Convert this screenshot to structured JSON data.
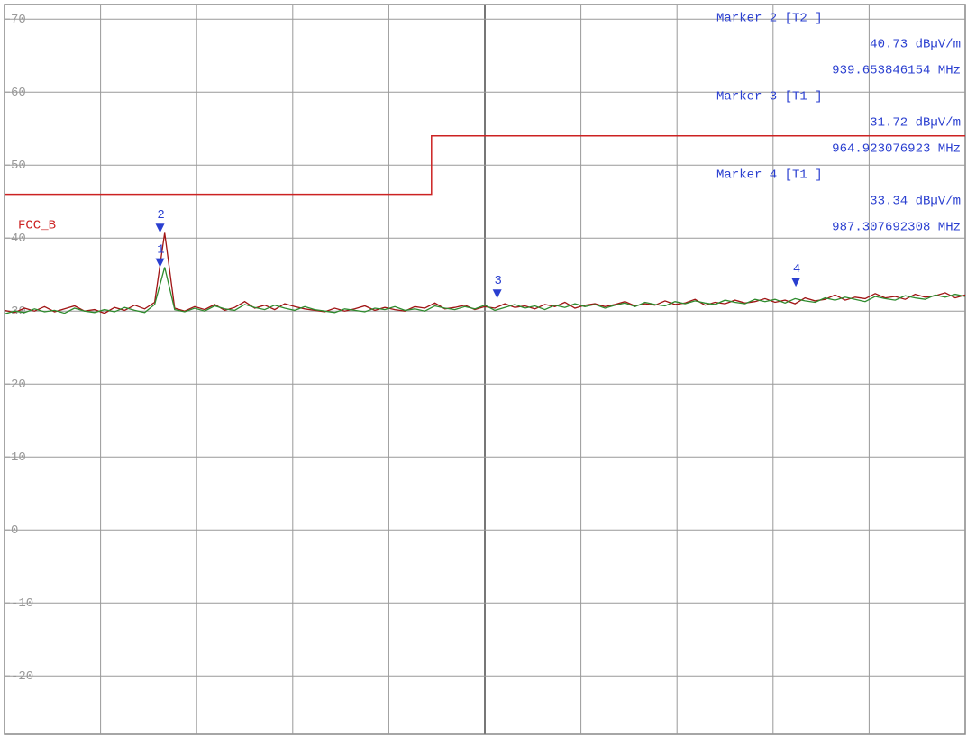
{
  "chart_data": {
    "type": "line",
    "xlim": [
      928,
      1000
    ],
    "ylim": [
      -28,
      72
    ],
    "yticks": [
      -20,
      -10,
      0,
      10,
      20,
      30,
      40,
      50,
      60,
      70
    ],
    "grid": true,
    "x": [
      928,
      928.75,
      929.5,
      930.25,
      931,
      931.75,
      932.5,
      933.25,
      934,
      934.75,
      935.5,
      936.25,
      937,
      937.75,
      938.5,
      939.25,
      940,
      940.75,
      941.5,
      942.25,
      943,
      943.75,
      944.5,
      945.25,
      946,
      946.75,
      947.5,
      948.25,
      949,
      949.75,
      950.5,
      951.25,
      952,
      952.75,
      953.5,
      954.25,
      955,
      955.75,
      956.5,
      957.25,
      958,
      958.75,
      959.5,
      960.25,
      961,
      961.75,
      962.5,
      963.25,
      964,
      964.75,
      965.5,
      966.25,
      967,
      967.75,
      968.5,
      969.25,
      970,
      970.75,
      971.5,
      972.25,
      973,
      973.75,
      974.5,
      975.25,
      976,
      976.75,
      977.5,
      978.25,
      979,
      979.75,
      980.5,
      981.25,
      982,
      982.75,
      983.5,
      984.25,
      985,
      985.75,
      986.5,
      987.25,
      988,
      988.75,
      989.5,
      990.25,
      991,
      991.75,
      992.5,
      993.25,
      994,
      994.75,
      995.5,
      996.25,
      997,
      997.75,
      998.5,
      999.25,
      1000
    ],
    "series": [
      {
        "color": "#a01414",
        "values": [
          30.1,
          29.8,
          30.4,
          30.0,
          30.6,
          29.9,
          30.3,
          30.7,
          30.0,
          30.2,
          29.7,
          30.5,
          30.1,
          30.8,
          30.3,
          31.2,
          40.7,
          30.4,
          30.0,
          30.6,
          30.2,
          30.9,
          30.1,
          30.5,
          31.3,
          30.4,
          30.8,
          30.2,
          31.0,
          30.6,
          30.3,
          30.1,
          29.9,
          30.4,
          30.0,
          30.3,
          30.7,
          30.1,
          30.5,
          30.2,
          30.0,
          30.6,
          30.4,
          31.1,
          30.3,
          30.5,
          30.8,
          30.2,
          30.6,
          30.4,
          31.0,
          30.5,
          30.7,
          30.3,
          30.9,
          30.6,
          31.2,
          30.4,
          30.8,
          31.0,
          30.6,
          30.9,
          31.3,
          30.7,
          31.0,
          30.8,
          31.4,
          30.9,
          31.1,
          31.6,
          30.8,
          31.2,
          31.0,
          31.5,
          31.1,
          31.3,
          31.7,
          31.2,
          31.5,
          31.0,
          31.8,
          31.4,
          31.6,
          32.2,
          31.5,
          31.9,
          31.7,
          32.4,
          31.8,
          32.0,
          31.6,
          32.3,
          31.9,
          32.1,
          32.5,
          31.8,
          32.2
        ]
      },
      {
        "color": "#2e8b2e",
        "values": [
          29.6,
          30.0,
          29.8,
          30.3,
          29.9,
          30.1,
          29.7,
          30.4,
          30.0,
          29.8,
          30.2,
          29.9,
          30.5,
          30.1,
          29.8,
          30.9,
          36.0,
          30.2,
          29.9,
          30.4,
          30.0,
          30.7,
          30.3,
          30.1,
          30.9,
          30.5,
          30.2,
          30.8,
          30.4,
          30.1,
          30.6,
          30.2,
          30.0,
          29.8,
          30.3,
          30.1,
          29.9,
          30.4,
          30.2,
          30.6,
          30.1,
          30.3,
          30.0,
          30.7,
          30.4,
          30.2,
          30.6,
          30.3,
          30.8,
          30.1,
          30.5,
          30.9,
          30.4,
          30.7,
          30.2,
          30.8,
          30.5,
          31.0,
          30.6,
          30.9,
          30.4,
          30.8,
          31.1,
          30.6,
          31.2,
          30.9,
          30.7,
          31.3,
          31.0,
          31.4,
          31.1,
          30.9,
          31.5,
          31.2,
          31.0,
          31.6,
          31.3,
          31.6,
          31.1,
          31.7,
          31.4,
          31.2,
          31.8,
          31.5,
          31.9,
          31.6,
          31.3,
          32.0,
          31.7,
          31.5,
          32.1,
          31.8,
          31.6,
          32.2,
          31.9,
          32.3,
          32.0
        ]
      }
    ],
    "limit_line": {
      "name": "FCC_B",
      "color": "#cc2222",
      "x": [
        928,
        960,
        960,
        1000
      ],
      "values": [
        46,
        46,
        54,
        54
      ]
    },
    "markers": {
      "color": "#2a3fd0",
      "labels": [
        "1",
        "2",
        "3",
        "4"
      ],
      "x": [
        939.65,
        939.653846154,
        964.923076923,
        987.307692308
      ],
      "values": [
        36,
        40.73,
        31.72,
        33.34
      ]
    },
    "marker_table": [
      {
        "title": "Marker 2 [T2 ]",
        "level": "40.73 dBµV/m",
        "frequency": "939.653846154 MHz"
      },
      {
        "title": "Marker 3 [T1 ]",
        "level": "31.72 dBµV/m",
        "frequency": "964.923076923 MHz"
      },
      {
        "title": "Marker 4 [T1 ]",
        "level": "33.34 dBµV/m",
        "frequency": "987.307692308 MHz"
      }
    ]
  }
}
